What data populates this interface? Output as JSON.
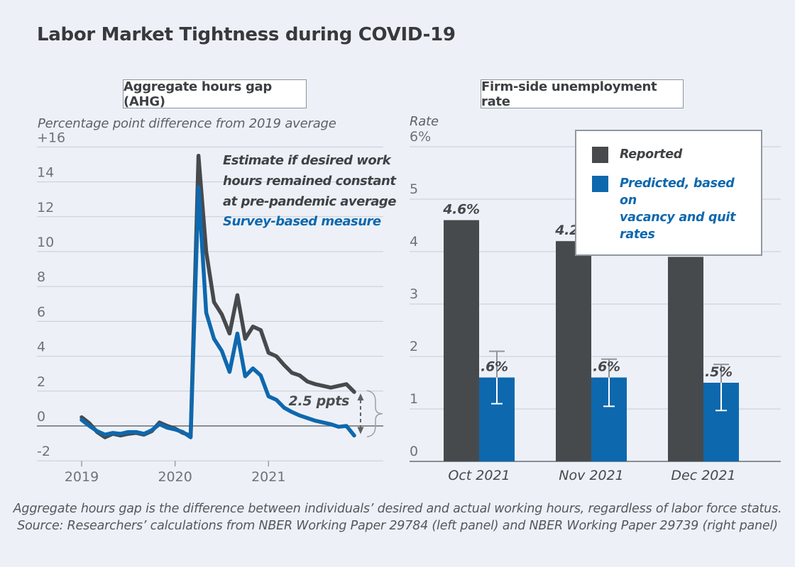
{
  "page": {
    "title": "Labor Market Tightness during COVID-19",
    "background": "#edf1f7"
  },
  "left_panel": {
    "header": "Aggregate hours gap (AHG)",
    "axis_title": "Percentage point difference from 2019 average",
    "annotation_reported": "Estimate if desired work\nhours remained constant\nat pre-pandemic average",
    "annotation_survey": "Survey-based measure",
    "gap_label": "2.5 ppts"
  },
  "right_panel": {
    "header": "Firm-side unemployment rate",
    "axis_title": "Rate",
    "legend": [
      {
        "label": "Reported",
        "color": "#474a4d"
      },
      {
        "label": "Predicted, based on\nvacancy and quit rates",
        "color": "#0e68ae"
      }
    ]
  },
  "footer": {
    "line1": "Aggregate hours gap is the difference between individuals’ desired and actual working hours, regardless of labor force status.",
    "line2": "Source: Researchers’ calculations from NBER Working Paper 29784 (left panel) and NBER Working Paper 29739 (right panel)"
  },
  "colors": {
    "reported": "#474a4d",
    "predicted": "#0e68ae",
    "gridline": "#c8cdd3",
    "zero_line": "#686d72",
    "tick_text": "#6e7378",
    "error_bar_gray": "#8f969c",
    "error_bar_white": "#ffffff",
    "background": "#edf1f7"
  },
  "chart_data": [
    {
      "type": "line",
      "title": "Aggregate hours gap (AHG)",
      "ylabel": "Percentage point difference from 2019 average",
      "x_start": "Jan 2019",
      "x_end": "Dec 2021",
      "frequency": "monthly",
      "ylim": [
        -2,
        16
      ],
      "grid": true,
      "y_ticks": [
        {
          "value": 16,
          "label": "+16"
        },
        {
          "value": 14,
          "label": "14"
        },
        {
          "value": 12,
          "label": "12"
        },
        {
          "value": 10,
          "label": "10"
        },
        {
          "value": 8,
          "label": "8"
        },
        {
          "value": 6,
          "label": "6"
        },
        {
          "value": 4,
          "label": "4"
        },
        {
          "value": 2,
          "label": "2"
        },
        {
          "value": 0,
          "label": "0"
        },
        {
          "value": -2,
          "label": "-2"
        }
      ],
      "x_ticks": [
        {
          "index": 0,
          "label": "2019"
        },
        {
          "index": 12,
          "label": "2020"
        },
        {
          "index": 24,
          "label": "2021"
        }
      ],
      "series": [
        {
          "name": "Estimate if desired work hours remained constant at pre-pandemic average",
          "color": "#474a4d",
          "values": [
            0.5,
            0.15,
            -0.35,
            -0.65,
            -0.45,
            -0.55,
            -0.45,
            -0.4,
            -0.5,
            -0.3,
            0.2,
            0.0,
            -0.15,
            -0.4,
            -0.55,
            15.5,
            10.0,
            7.1,
            6.4,
            5.3,
            7.5,
            5.0,
            5.7,
            5.5,
            4.2,
            4.0,
            3.5,
            3.05,
            2.9,
            2.55,
            2.4,
            2.3,
            2.2,
            2.3,
            2.4,
            1.95
          ]
        },
        {
          "name": "Survey-based measure",
          "color": "#0e68ae",
          "values": [
            0.35,
            0.0,
            -0.3,
            -0.5,
            -0.4,
            -0.45,
            -0.35,
            -0.35,
            -0.45,
            -0.25,
            0.1,
            -0.1,
            -0.2,
            -0.35,
            -0.65,
            13.7,
            6.5,
            5.0,
            4.3,
            3.1,
            5.3,
            2.85,
            3.3,
            2.9,
            1.7,
            1.5,
            1.05,
            0.8,
            0.6,
            0.45,
            0.3,
            0.2,
            0.1,
            -0.05,
            0.0,
            -0.55
          ]
        }
      ],
      "gap_annotation": {
        "label": "2.5 ppts",
        "from_value": 1.95,
        "to_value": -0.55
      }
    },
    {
      "type": "bar",
      "title": "Firm-side unemployment rate",
      "ylabel": "Rate",
      "ylim": [
        0,
        6
      ],
      "grid": true,
      "legend_position": "top-right",
      "y_ticks": [
        {
          "value": 6,
          "label": "6%"
        },
        {
          "value": 5,
          "label": "5"
        },
        {
          "value": 4,
          "label": "4"
        },
        {
          "value": 3,
          "label": "3"
        },
        {
          "value": 2,
          "label": "2"
        },
        {
          "value": 1,
          "label": "1"
        },
        {
          "value": 0,
          "label": "0"
        }
      ],
      "categories": [
        "Oct 2021",
        "Nov 2021",
        "Dec 2021"
      ],
      "series": [
        {
          "name": "Reported",
          "color": "#474a4d",
          "values": [
            4.6,
            4.2,
            3.9
          ],
          "value_labels": [
            "4.6%",
            "4.2%",
            "3.9%"
          ]
        },
        {
          "name": "Predicted, based on vacancy and quit rates",
          "color": "#0e68ae",
          "values": [
            1.6,
            1.6,
            1.5
          ],
          "value_labels": [
            "1.6%",
            "1.6%",
            "1.5%"
          ],
          "confidence_intervals": [
            [
              1.1,
              2.1
            ],
            [
              1.05,
              1.95
            ],
            [
              0.97,
              1.85
            ]
          ]
        }
      ]
    }
  ]
}
